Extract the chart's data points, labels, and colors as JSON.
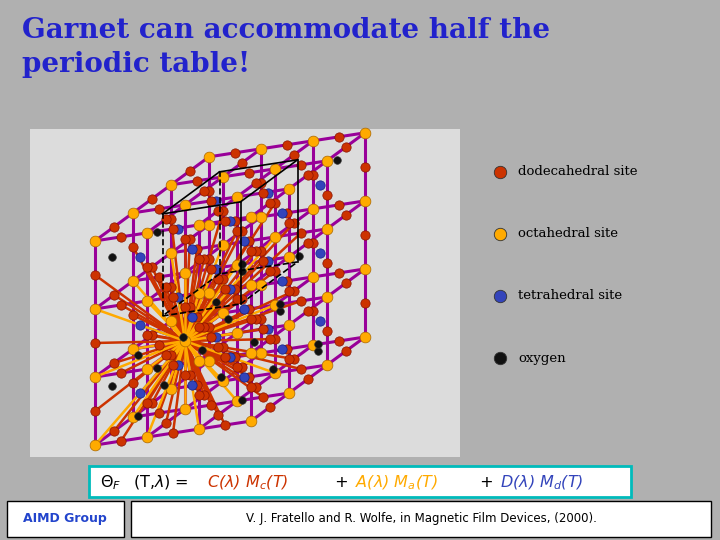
{
  "title": "Garnet can accommodate half the\nperiodic table!",
  "title_color": "#2222CC",
  "title_fontsize": 20,
  "bg_outer": "#B0B0B0",
  "bg_title": "#D0D0D0",
  "bg_crystal": "#DCDCDC",
  "bg_footer": "#C0C0C0",
  "legend_items": [
    {
      "label": "dodecahedral site",
      "color": "#CC3300"
    },
    {
      "label": "octahedral site",
      "color": "#FFAA00"
    },
    {
      "label": "tetrahedral site",
      "color": "#3344BB"
    },
    {
      "label": "oxygen",
      "color": "#111111"
    }
  ],
  "footer_left": "AIMD Group",
  "footer_left_color": "#2244CC",
  "footer_right": "V. J. Fratello and R. Wolfe, in Magnetic Film Devices, (2000).",
  "formula_border": "#00BBBB",
  "cube_color": "#990099",
  "red": "#CC3300",
  "yellow": "#FFAA00",
  "blue": "#3344BB",
  "black": "#111111",
  "bond_red": "#CC3300",
  "bond_yellow": "#FFAA00",
  "bond_blue": "#3344BB"
}
